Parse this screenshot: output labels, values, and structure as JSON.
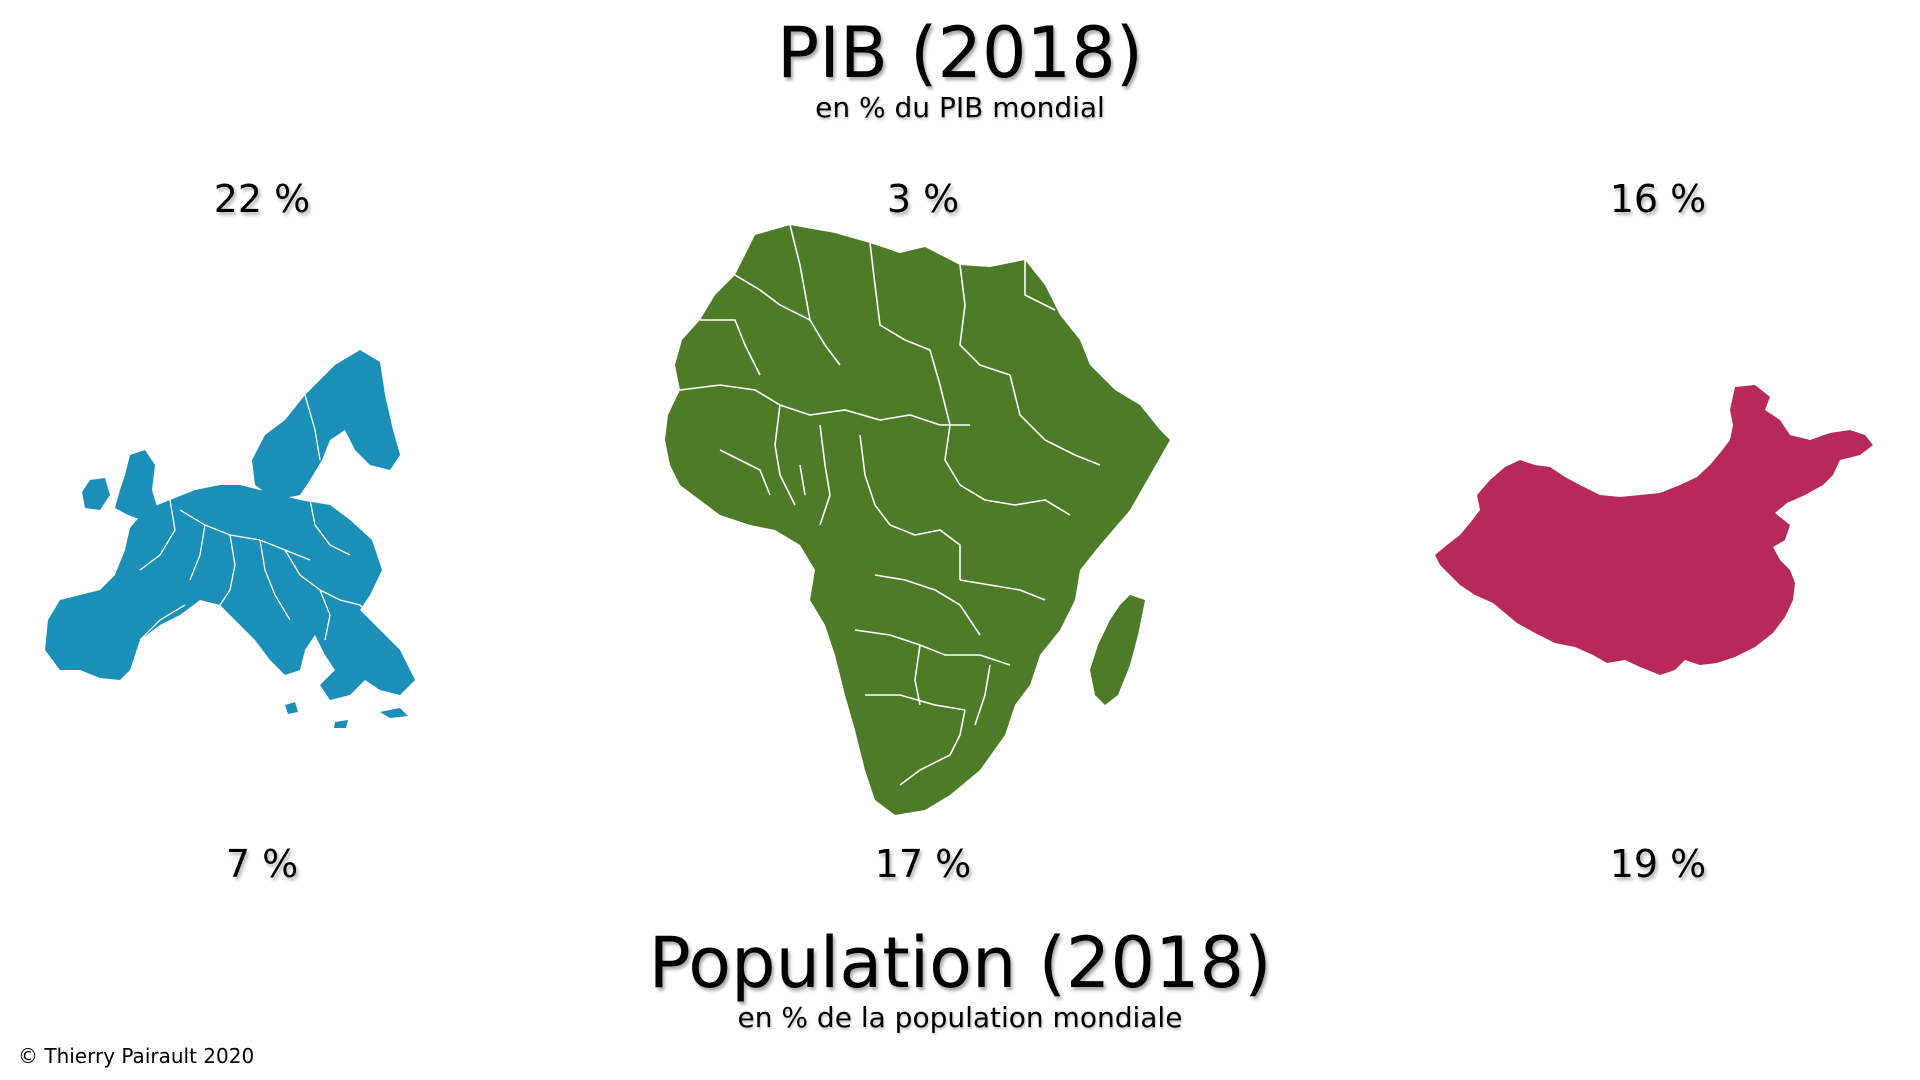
{
  "gdp": {
    "title": "PIB (2018)",
    "subtitle": "en % du PIB mondial",
    "values": {
      "europe": "22 %",
      "africa": "3 %",
      "china": "16 %"
    }
  },
  "population": {
    "title": "Population (2018)",
    "subtitle": "en % de la population mondiale",
    "values": {
      "europe": "7 %",
      "africa": "17 %",
      "china": "19 %"
    }
  },
  "copyright": "© Thierry Pairault 2020",
  "colors": {
    "europe": "#1b8fb8",
    "africa": "#4e7b28",
    "china": "#b6295a",
    "borders": "#ffffff"
  },
  "icons": {
    "europe": "eu-map-icon",
    "africa": "africa-map-icon",
    "china": "china-map-icon"
  }
}
